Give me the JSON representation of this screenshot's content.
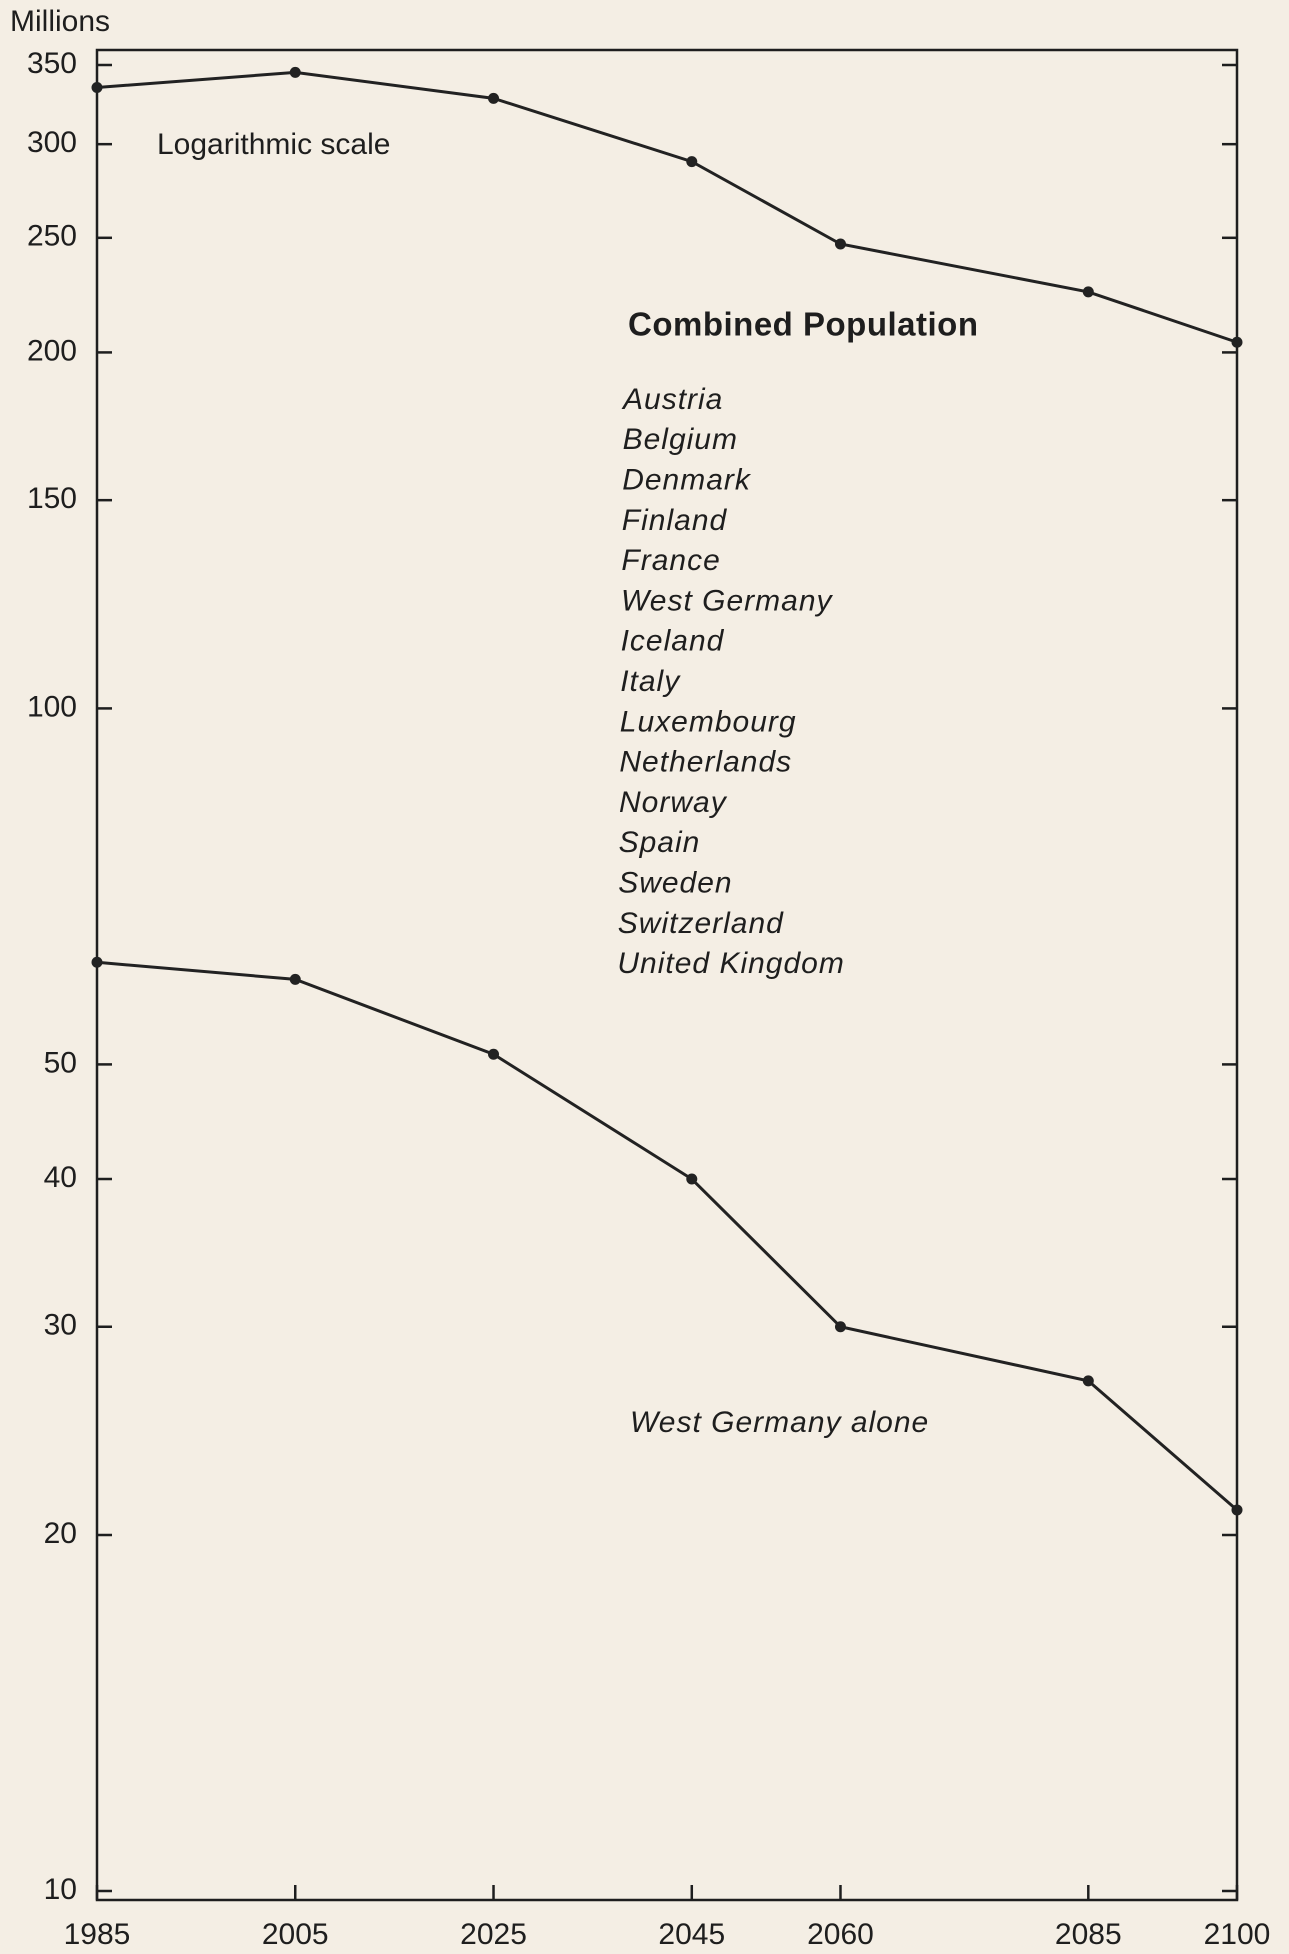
{
  "chart_data": {
    "type": "line",
    "y_label": "Millions",
    "annotations": [
      "Logarithmic scale"
    ],
    "countries": [
      "Austria",
      "Belgium",
      "Denmark",
      "Finland",
      "France",
      "West Germany",
      "Iceland",
      "Italy",
      "Luxembourg",
      "Netherlands",
      "Norway",
      "Spain",
      "Sweden",
      "Switzerland",
      "United Kingdom"
    ],
    "x": [
      1985,
      2005,
      2025,
      2045,
      2060,
      2085,
      2100
    ],
    "series": [
      {
        "name": "Combined Population",
        "color": "#222222",
        "values": [
          335,
          345,
          328,
          290,
          247,
          225,
          204
        ]
      },
      {
        "name": "West Germany alone",
        "color": "#222222",
        "values": [
          61,
          59,
          51,
          40,
          30,
          27,
          21
        ]
      }
    ],
    "xlim": [
      1985,
      2100
    ],
    "xticks": [
      1985,
      2005,
      2025,
      2045,
      2060,
      2085,
      2100
    ],
    "ylim": [
      10,
      350
    ],
    "yticks": [
      10,
      20,
      30,
      40,
      50,
      100,
      150,
      200,
      250,
      300,
      350
    ],
    "yscale": "log",
    "grid": false
  }
}
